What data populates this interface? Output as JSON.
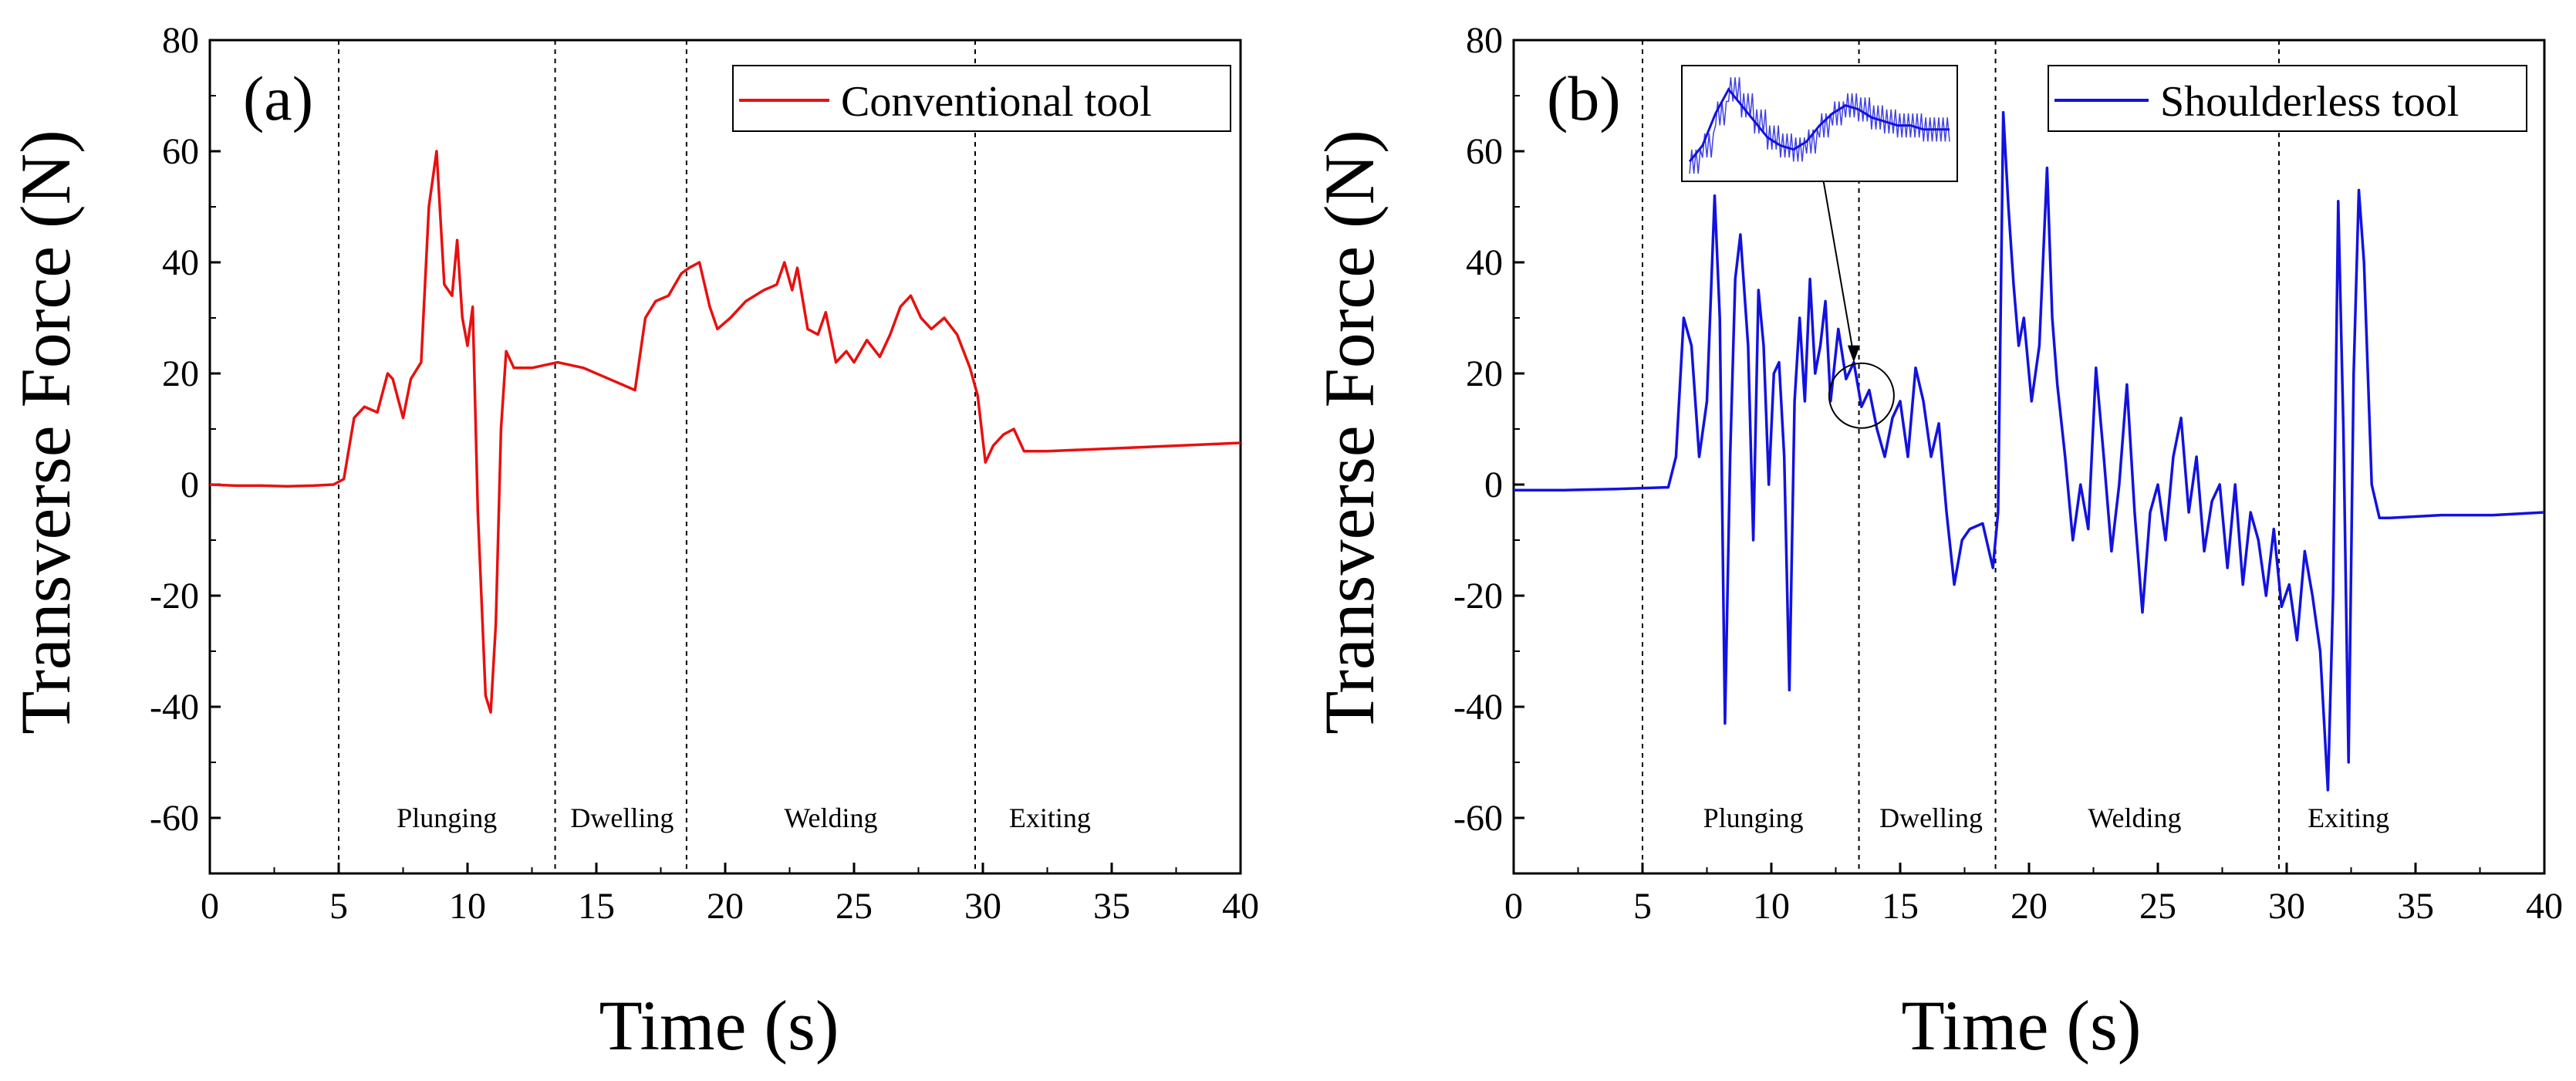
{
  "chart_data": [
    {
      "type": "line",
      "panel_label": "(a)",
      "xlabel": "Time (s)",
      "ylabel": "Transverse Force (N)",
      "xlim": [
        0,
        40
      ],
      "ylim": [
        -70,
        80
      ],
      "x_ticks": [
        0,
        5,
        10,
        15,
        20,
        25,
        30,
        35,
        40
      ],
      "y_ticks": [
        -60,
        -40,
        -20,
        0,
        20,
        40,
        60,
        80
      ],
      "grid": false,
      "legend_position": "top-right",
      "phase_dividers": [
        5,
        13.4,
        18.5,
        29.7
      ],
      "phases": [
        {
          "label": "Plunging",
          "x": 9.2
        },
        {
          "label": "Dwelling",
          "x": 16.0
        },
        {
          "label": "Welding",
          "x": 24.1
        },
        {
          "label": "Exiting",
          "x": 32.6
        }
      ],
      "series": [
        {
          "name": "Conventional tool",
          "color": "#e8100f",
          "points": [
            [
              0,
              0
            ],
            [
              1,
              -0.2
            ],
            [
              2,
              -0.2
            ],
            [
              3,
              -0.3
            ],
            [
              4,
              -0.2
            ],
            [
              4.8,
              0
            ],
            [
              5.2,
              1
            ],
            [
              5.6,
              12
            ],
            [
              6.0,
              14
            ],
            [
              6.5,
              13
            ],
            [
              6.9,
              20
            ],
            [
              7.1,
              19
            ],
            [
              7.5,
              12
            ],
            [
              7.8,
              19
            ],
            [
              8.2,
              22
            ],
            [
              8.5,
              50
            ],
            [
              8.8,
              60
            ],
            [
              9.1,
              36
            ],
            [
              9.4,
              34
            ],
            [
              9.6,
              44
            ],
            [
              9.8,
              30
            ],
            [
              10.0,
              25
            ],
            [
              10.2,
              32
            ],
            [
              10.4,
              -5
            ],
            [
              10.7,
              -38
            ],
            [
              10.9,
              -41
            ],
            [
              11.1,
              -25
            ],
            [
              11.3,
              10
            ],
            [
              11.5,
              24
            ],
            [
              11.8,
              21
            ],
            [
              12.5,
              21
            ],
            [
              13.5,
              22
            ],
            [
              14.5,
              21
            ],
            [
              15.5,
              19
            ],
            [
              16.5,
              17
            ],
            [
              16.9,
              30
            ],
            [
              17.3,
              33
            ],
            [
              17.8,
              34
            ],
            [
              18.3,
              38
            ],
            [
              18.6,
              39
            ],
            [
              19.0,
              40
            ],
            [
              19.4,
              32
            ],
            [
              19.7,
              28
            ],
            [
              20.2,
              30
            ],
            [
              20.8,
              33
            ],
            [
              21.5,
              35
            ],
            [
              22.0,
              36
            ],
            [
              22.3,
              40
            ],
            [
              22.6,
              35
            ],
            [
              22.8,
              39
            ],
            [
              23.2,
              28
            ],
            [
              23.6,
              27
            ],
            [
              23.9,
              31
            ],
            [
              24.3,
              22
            ],
            [
              24.7,
              24
            ],
            [
              25.0,
              22
            ],
            [
              25.5,
              26
            ],
            [
              26.0,
              23
            ],
            [
              26.4,
              27
            ],
            [
              26.8,
              32
            ],
            [
              27.2,
              34
            ],
            [
              27.6,
              30
            ],
            [
              28.0,
              28
            ],
            [
              28.5,
              30
            ],
            [
              29.0,
              27
            ],
            [
              29.5,
              21
            ],
            [
              29.8,
              16
            ],
            [
              30.1,
              4
            ],
            [
              30.4,
              7
            ],
            [
              30.8,
              9
            ],
            [
              31.2,
              10
            ],
            [
              31.6,
              6
            ],
            [
              32.5,
              6
            ],
            [
              35,
              6.5
            ],
            [
              37.5,
              7
            ],
            [
              40,
              7.5
            ]
          ]
        }
      ]
    },
    {
      "type": "line",
      "panel_label": "(b)",
      "xlabel": "Time (s)",
      "ylabel": "Transverse Force (N)",
      "xlim": [
        0,
        40
      ],
      "ylim": [
        -70,
        80
      ],
      "x_ticks": [
        0,
        5,
        10,
        15,
        20,
        25,
        30,
        35,
        40
      ],
      "y_ticks": [
        -60,
        -40,
        -20,
        0,
        20,
        40,
        60,
        80
      ],
      "grid": false,
      "legend_position": "top-right",
      "phase_dividers": [
        5,
        13.4,
        18.7,
        29.7
      ],
      "phases": [
        {
          "label": "Plunging",
          "x": 9.3
        },
        {
          "label": "Dwelling",
          "x": 16.2
        },
        {
          "label": "Welding",
          "x": 24.1
        },
        {
          "label": "Exiting",
          "x": 32.4
        }
      ],
      "annotations": [
        {
          "type": "circle",
          "x": 13.5,
          "y": 16
        },
        {
          "type": "inset",
          "description": "zoomed oscillation detail",
          "x_range": [
            6.5,
            13.6
          ],
          "y_range": [
            56,
            79
          ],
          "arrow_to": [
            13.2,
            22
          ]
        }
      ],
      "series": [
        {
          "name": "Shoulderless tool",
          "color": "#1212e0",
          "points": [
            [
              0,
              -1
            ],
            [
              2,
              -1
            ],
            [
              4,
              -0.8
            ],
            [
              6,
              -0.5
            ],
            [
              6.3,
              5
            ],
            [
              6.6,
              30
            ],
            [
              6.9,
              25
            ],
            [
              7.2,
              5
            ],
            [
              7.5,
              15
            ],
            [
              7.8,
              52
            ],
            [
              8.0,
              30
            ],
            [
              8.2,
              -43
            ],
            [
              8.4,
              5
            ],
            [
              8.6,
              37
            ],
            [
              8.8,
              45
            ],
            [
              9.1,
              25
            ],
            [
              9.3,
              -10
            ],
            [
              9.5,
              35
            ],
            [
              9.7,
              25
            ],
            [
              9.9,
              0
            ],
            [
              10.1,
              20
            ],
            [
              10.3,
              22
            ],
            [
              10.5,
              5
            ],
            [
              10.7,
              -37
            ],
            [
              10.9,
              15
            ],
            [
              11.1,
              30
            ],
            [
              11.3,
              15
            ],
            [
              11.5,
              37
            ],
            [
              11.7,
              20
            ],
            [
              11.9,
              25
            ],
            [
              12.1,
              33
            ],
            [
              12.3,
              15
            ],
            [
              12.6,
              28
            ],
            [
              12.9,
              19
            ],
            [
              13.2,
              22
            ],
            [
              13.5,
              14
            ],
            [
              13.8,
              17
            ],
            [
              14.1,
              10
            ],
            [
              14.4,
              5
            ],
            [
              14.7,
              12
            ],
            [
              15.0,
              15
            ],
            [
              15.3,
              5
            ],
            [
              15.6,
              21
            ],
            [
              15.9,
              15
            ],
            [
              16.2,
              5
            ],
            [
              16.5,
              11
            ],
            [
              16.8,
              -5
            ],
            [
              17.1,
              -18
            ],
            [
              17.4,
              -10
            ],
            [
              17.7,
              -8
            ],
            [
              18.2,
              -7
            ],
            [
              18.6,
              -15
            ],
            [
              18.8,
              -5
            ],
            [
              19.0,
              67
            ],
            [
              19.2,
              50
            ],
            [
              19.4,
              36
            ],
            [
              19.6,
              25
            ],
            [
              19.8,
              30
            ],
            [
              20.1,
              15
            ],
            [
              20.4,
              25
            ],
            [
              20.7,
              57
            ],
            [
              20.9,
              30
            ],
            [
              21.1,
              18
            ],
            [
              21.4,
              5
            ],
            [
              21.7,
              -10
            ],
            [
              22.0,
              0
            ],
            [
              22.3,
              -8
            ],
            [
              22.6,
              21
            ],
            [
              22.9,
              5
            ],
            [
              23.2,
              -12
            ],
            [
              23.5,
              0
            ],
            [
              23.8,
              18
            ],
            [
              24.1,
              -5
            ],
            [
              24.4,
              -23
            ],
            [
              24.7,
              -5
            ],
            [
              25.0,
              0
            ],
            [
              25.3,
              -10
            ],
            [
              25.6,
              5
            ],
            [
              25.9,
              12
            ],
            [
              26.2,
              -5
            ],
            [
              26.5,
              5
            ],
            [
              26.8,
              -12
            ],
            [
              27.1,
              -3
            ],
            [
              27.4,
              0
            ],
            [
              27.7,
              -15
            ],
            [
              28.0,
              0
            ],
            [
              28.3,
              -18
            ],
            [
              28.6,
              -5
            ],
            [
              28.9,
              -10
            ],
            [
              29.2,
              -20
            ],
            [
              29.5,
              -8
            ],
            [
              29.8,
              -22
            ],
            [
              30.1,
              -18
            ],
            [
              30.4,
              -28
            ],
            [
              30.7,
              -12
            ],
            [
              31.0,
              -20
            ],
            [
              31.3,
              -30
            ],
            [
              31.6,
              -55
            ],
            [
              31.8,
              -20
            ],
            [
              32.0,
              51
            ],
            [
              32.2,
              10
            ],
            [
              32.4,
              -50
            ],
            [
              32.6,
              20
            ],
            [
              32.8,
              53
            ],
            [
              33.0,
              40
            ],
            [
              33.3,
              0
            ],
            [
              33.6,
              -6
            ],
            [
              34,
              -6
            ],
            [
              36,
              -5.5
            ],
            [
              38,
              -5.5
            ],
            [
              40,
              -5
            ]
          ]
        }
      ],
      "inset_series": [
        [
          0,
          58
        ],
        [
          0.5,
          62
        ],
        [
          1,
          70
        ],
        [
          1.5,
          76
        ],
        [
          2,
          72
        ],
        [
          2.5,
          68
        ],
        [
          3,
          64
        ],
        [
          3.5,
          62
        ],
        [
          4,
          61
        ],
        [
          4.5,
          63
        ],
        [
          5,
          67
        ],
        [
          5.5,
          70
        ],
        [
          6,
          72
        ],
        [
          6.5,
          71
        ],
        [
          7,
          69
        ],
        [
          7.5,
          68
        ],
        [
          8,
          67
        ],
        [
          8.5,
          67
        ],
        [
          9,
          66
        ],
        [
          9.5,
          66
        ],
        [
          10,
          66
        ]
      ]
    }
  ]
}
